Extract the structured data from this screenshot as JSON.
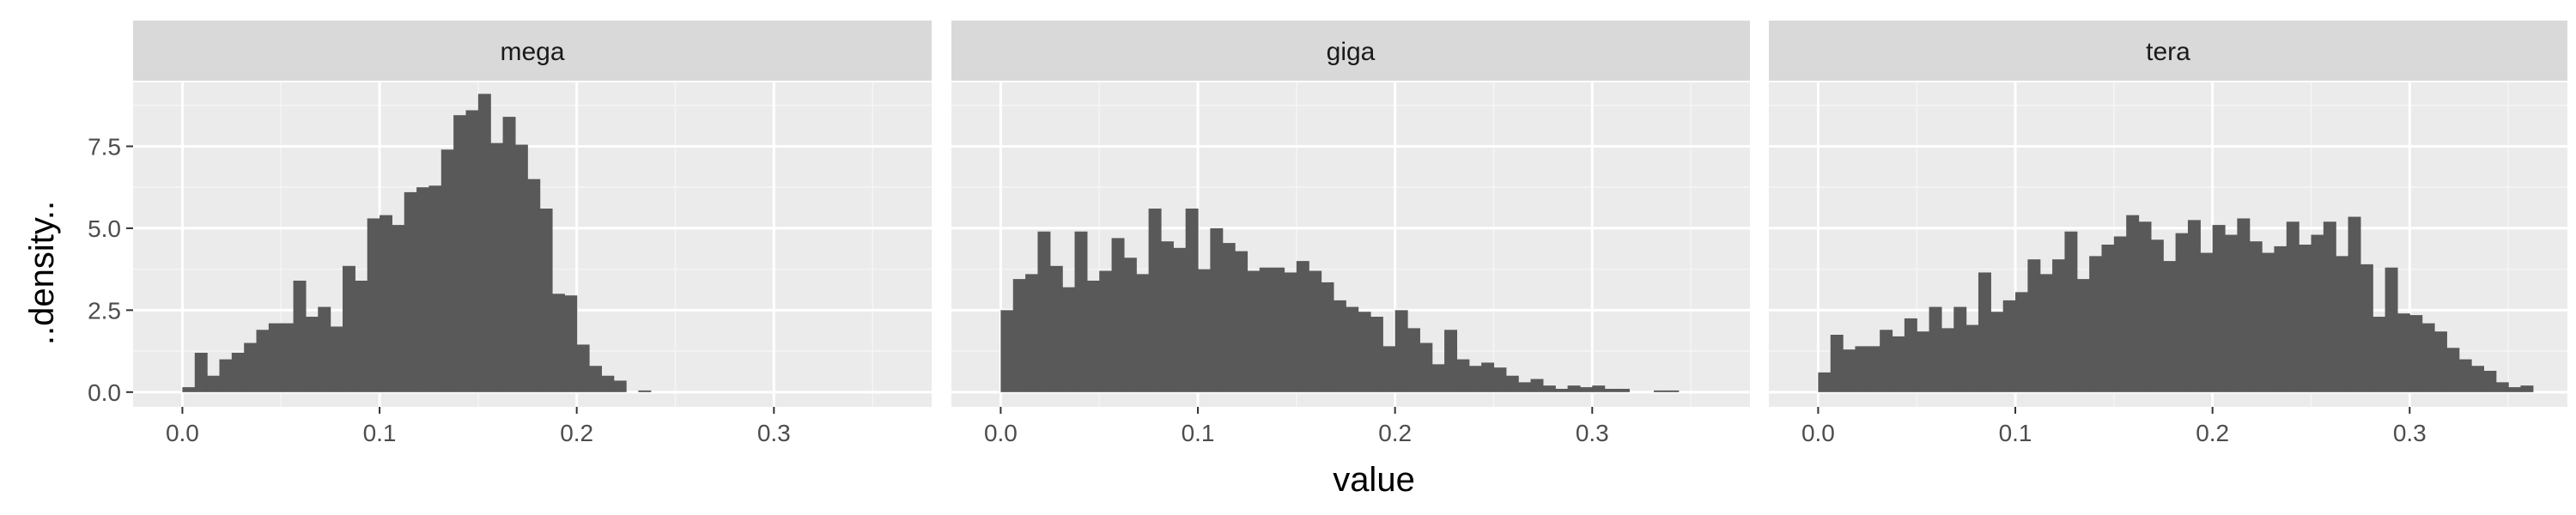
{
  "chart_data": {
    "type": "bar",
    "kind": "faceted-histogram",
    "xlabel": "value",
    "ylabel": "..density..",
    "xlim": [
      -0.025,
      0.38
    ],
    "ylim": [
      -0.45,
      9.45
    ],
    "x_ticks": [
      0.0,
      0.1,
      0.2,
      0.3
    ],
    "x_tick_labels": [
      "0.0",
      "0.1",
      "0.2",
      "0.3"
    ],
    "y_ticks": [
      0.0,
      2.5,
      5.0,
      7.5
    ],
    "y_tick_labels": [
      "0.0",
      "2.5",
      "5.0",
      "7.5"
    ],
    "bin_width": 0.00625,
    "bin_start": 0.0,
    "grid": true,
    "bar_color": "#595959",
    "panel_background": "#ebebeb",
    "strip_background": "#d9d9d9",
    "facets": [
      {
        "label": "mega",
        "values": [
          0.15,
          1.2,
          0.5,
          1.0,
          1.2,
          1.5,
          1.9,
          2.1,
          2.1,
          3.4,
          2.3,
          2.6,
          2.0,
          3.85,
          3.4,
          5.3,
          5.4,
          5.1,
          6.1,
          6.25,
          6.3,
          7.4,
          8.45,
          8.6,
          9.1,
          7.6,
          8.4,
          7.55,
          6.5,
          5.6,
          3.0,
          2.95,
          1.45,
          0.8,
          0.5,
          0.35,
          0.0,
          0.05
        ]
      },
      {
        "label": "giga",
        "values": [
          2.5,
          3.45,
          3.6,
          4.9,
          3.85,
          3.2,
          4.9,
          3.4,
          3.7,
          4.7,
          4.1,
          3.6,
          5.6,
          4.6,
          4.4,
          5.6,
          3.75,
          5.0,
          4.55,
          4.3,
          3.7,
          3.8,
          3.8,
          3.65,
          4.0,
          3.7,
          3.35,
          2.8,
          2.6,
          2.45,
          2.3,
          1.4,
          2.5,
          1.95,
          1.5,
          0.85,
          1.9,
          1.0,
          0.8,
          0.9,
          0.75,
          0.5,
          0.3,
          0.4,
          0.2,
          0.1,
          0.2,
          0.15,
          0.2,
          0.1,
          0.1,
          0.0,
          0.0,
          0.05,
          0.05
        ]
      },
      {
        "label": "tera",
        "values": [
          0.6,
          1.75,
          1.3,
          1.4,
          1.4,
          1.9,
          1.7,
          2.25,
          1.85,
          2.6,
          1.95,
          2.6,
          2.05,
          3.65,
          2.45,
          2.8,
          3.05,
          4.05,
          3.6,
          4.05,
          4.9,
          3.45,
          4.15,
          4.5,
          4.75,
          5.4,
          5.2,
          4.65,
          4.0,
          4.85,
          5.25,
          4.25,
          5.1,
          4.8,
          5.3,
          4.6,
          4.25,
          4.45,
          5.2,
          4.5,
          4.8,
          5.2,
          4.15,
          5.35,
          3.9,
          2.3,
          3.8,
          2.4,
          2.35,
          2.1,
          1.85,
          1.35,
          1.0,
          0.8,
          0.65,
          0.3,
          0.15,
          0.2
        ]
      }
    ]
  }
}
